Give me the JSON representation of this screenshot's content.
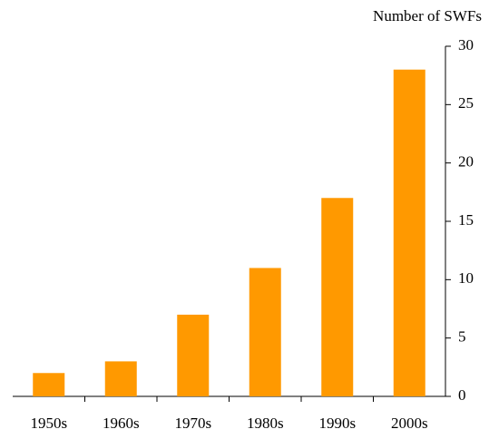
{
  "chart_data": {
    "type": "bar",
    "y_axis_label": "Number of SWFs",
    "categories": [
      "1950s",
      "1960s",
      "1970s",
      "1980s",
      "1990s",
      "2000s"
    ],
    "values": [
      2,
      3,
      7,
      11,
      17,
      28
    ],
    "color": "#ff9900",
    "ylim": [
      0,
      30
    ],
    "yticks": [
      0,
      5,
      10,
      15,
      20,
      25,
      30
    ],
    "y_axis_side": "right",
    "grid": false
  }
}
